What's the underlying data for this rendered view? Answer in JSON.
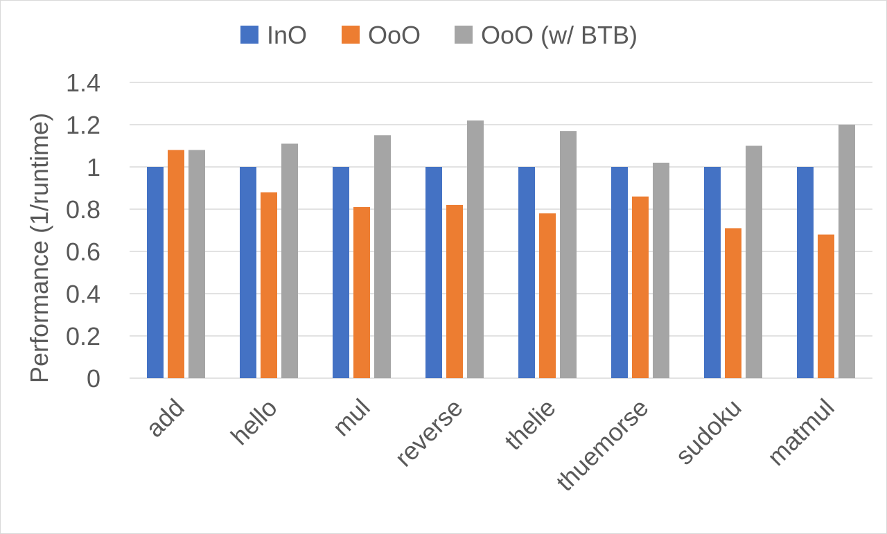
{
  "chart_data": {
    "type": "bar",
    "title": "",
    "xlabel": "",
    "ylabel": "Performance (1/runtime)",
    "ylim": [
      0,
      1.4
    ],
    "yticks": [
      0,
      0.2,
      0.4,
      0.6,
      0.8,
      1,
      1.2,
      1.4
    ],
    "ytick_labels": [
      "0",
      "0.2",
      "0.4",
      "0.6",
      "0.8",
      "1",
      "1.2",
      "1.4"
    ],
    "grid": true,
    "legend_position": "top",
    "categories": [
      "add",
      "hello",
      "mul",
      "reverse",
      "thelie",
      "thuemorse",
      "sudoku",
      "matmul"
    ],
    "series": [
      {
        "name": "InO",
        "color": "#4472C4",
        "values": [
          1,
          1,
          1,
          1,
          1,
          1,
          1,
          1
        ]
      },
      {
        "name": "OoO",
        "color": "#ED7D31",
        "values": [
          1.08,
          0.88,
          0.81,
          0.82,
          0.78,
          0.86,
          0.71,
          0.68
        ]
      },
      {
        "name": "OoO (w/ BTB)",
        "color": "#A5A5A5",
        "values": [
          1.08,
          1.11,
          1.15,
          1.22,
          1.17,
          1.02,
          1.1,
          1.2
        ]
      }
    ]
  }
}
